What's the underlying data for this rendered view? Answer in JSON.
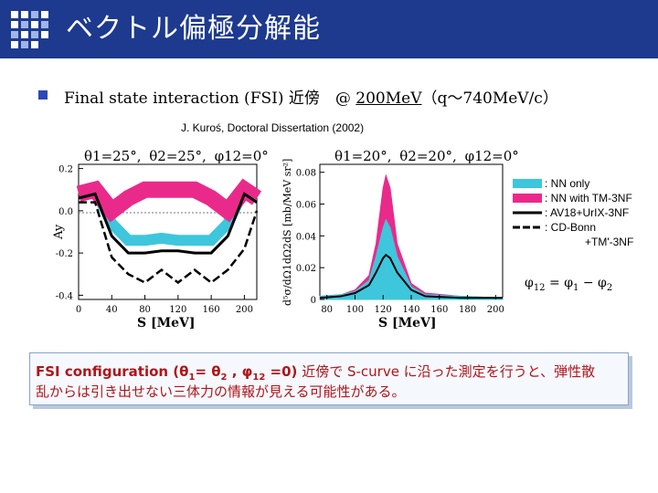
{
  "header": {
    "title": "ベクトル偏極分解能",
    "brand_color": "#1d3a8f"
  },
  "bullet": {
    "prefix": "Final state interaction (FSI) 近傍　",
    "at": "@ ",
    "energy": "200MeV",
    "range": "（q～740MeV/c）"
  },
  "citation": "J. Kuroś, Doctoral Dissertation (2002)",
  "left_panel": {
    "heading": {
      "theta1": "θ1=25°,",
      "theta2": "θ2=25°,",
      "phi": "φ12=0°"
    },
    "ylabel": "Ay",
    "xlabel": "S [MeV]",
    "yticks": [
      "0.2",
      "0.0",
      "-0.2",
      "-0.4"
    ],
    "xticks": [
      "0",
      "40",
      "80",
      "120",
      "160",
      "200"
    ]
  },
  "right_panel": {
    "heading": {
      "theta1": "θ1=20°,",
      "theta2": "θ2=20°,",
      "phi": "φ12=0°"
    },
    "ylabel": "d⁵σ/dΩ1dΩ2dS [mb/MeV sr²]",
    "xlabel": "S [MeV]",
    "yticks": [
      "0.08",
      "0.06",
      "0.04",
      "0.02",
      "0"
    ],
    "xticks": [
      "80",
      "100",
      "120",
      "140",
      "160",
      "180",
      "200"
    ]
  },
  "legend": {
    "items": [
      {
        "label": ": NN only",
        "color": "#3ec6dc",
        "style": "band"
      },
      {
        "label": ": NN with TM-3NF",
        "color": "#ea2a8a",
        "style": "band"
      },
      {
        "label": ": AV18+UrIX-3NF",
        "color": "#000000",
        "style": "solid"
      },
      {
        "label": ": CD-Bonn",
        "color": "#000000",
        "style": "dashed"
      },
      {
        "label": "+TM'-3NF",
        "color": "#000000",
        "style": "none"
      }
    ]
  },
  "phi_formula": {
    "phi12": "φ",
    "sub12": "12",
    "eq": " = ",
    "phi1": "φ",
    "sub1": "1",
    "minus": " − ",
    "phi2": "φ",
    "sub2": "2"
  },
  "note": {
    "line1_bold": "FSI configuration (θ",
    "sub1": "1",
    "eq1": "= θ",
    "sub2": "2",
    "comma": " , φ",
    "sub12": "12",
    "eq0": " =0)",
    "line1_rest": " 近傍で S-curve に沿った測定を行うと、弾性散",
    "line2": "乱からは引き出せない三体力の情報が見える可能性がある。"
  },
  "chart_data": [
    {
      "type": "line",
      "ylabel": "Ay",
      "xlabel": "S [MeV]",
      "xlim": [
        0,
        215
      ],
      "ylim": [
        -0.42,
        0.22
      ],
      "series": [
        {
          "name": "NN only",
          "x": [
            0,
            20,
            40,
            60,
            80,
            100,
            120,
            140,
            160,
            180,
            200,
            215
          ],
          "y": [
            0.08,
            0.1,
            -0.06,
            -0.14,
            -0.14,
            -0.13,
            -0.14,
            -0.14,
            -0.14,
            -0.06,
            0.1,
            0.06
          ]
        },
        {
          "name": "NN with TM-3NF",
          "x": [
            0,
            20,
            40,
            60,
            80,
            100,
            120,
            140,
            160,
            180,
            200,
            215
          ],
          "y": [
            0.08,
            0.1,
            0.0,
            0.06,
            0.1,
            0.1,
            0.1,
            0.1,
            0.06,
            0.0,
            0.1,
            0.06
          ]
        },
        {
          "name": "AV18+UrIX-3NF",
          "x": [
            0,
            20,
            40,
            60,
            80,
            100,
            120,
            140,
            160,
            180,
            200,
            215
          ],
          "y": [
            0.06,
            0.08,
            -0.12,
            -0.2,
            -0.2,
            -0.19,
            -0.19,
            -0.2,
            -0.2,
            -0.12,
            0.08,
            0.04
          ]
        },
        {
          "name": "CD-Bonn +TM'-3NF",
          "x": [
            0,
            20,
            40,
            60,
            80,
            100,
            120,
            140,
            160,
            180,
            200,
            215
          ],
          "y": [
            0.04,
            0.04,
            -0.22,
            -0.3,
            -0.34,
            -0.28,
            -0.34,
            -0.28,
            -0.34,
            -0.28,
            -0.18,
            0.0
          ]
        }
      ]
    },
    {
      "type": "line",
      "ylabel": "d⁵σ/dΩ1dΩ2dS [mb/MeV sr²]",
      "xlabel": "S [MeV]",
      "xlim": [
        75,
        205
      ],
      "ylim": [
        0,
        0.085
      ],
      "series": [
        {
          "name": "NN with TM-3NF",
          "x": [
            75,
            90,
            100,
            110,
            115,
            120,
            122,
            125,
            130,
            140,
            150,
            175,
            205
          ],
          "y": [
            0.002,
            0.003,
            0.006,
            0.015,
            0.035,
            0.07,
            0.078,
            0.07,
            0.035,
            0.01,
            0.004,
            0.002,
            0.001
          ]
        },
        {
          "name": "NN only",
          "x": [
            75,
            90,
            100,
            110,
            115,
            120,
            122,
            125,
            130,
            140,
            150,
            175,
            205
          ],
          "y": [
            0.002,
            0.003,
            0.005,
            0.012,
            0.027,
            0.045,
            0.05,
            0.045,
            0.027,
            0.008,
            0.003,
            0.002,
            0.001
          ]
        },
        {
          "name": "AV18+UrIX-3NF",
          "x": [
            75,
            90,
            100,
            110,
            115,
            120,
            122,
            125,
            130,
            140,
            150,
            175,
            205
          ],
          "y": [
            0.001,
            0.002,
            0.004,
            0.009,
            0.017,
            0.026,
            0.028,
            0.026,
            0.017,
            0.006,
            0.002,
            0.001,
            0.001
          ]
        }
      ]
    }
  ]
}
